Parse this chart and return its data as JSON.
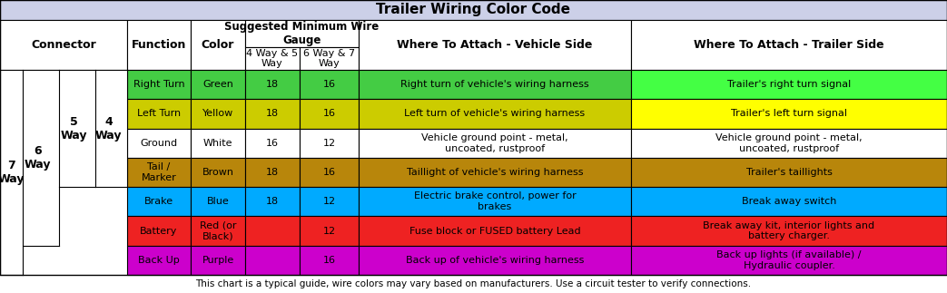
{
  "title": "Trailer Wiring Color Code",
  "footer": "This chart is a typical guide, wire colors may vary based on manufacturers. Use a circuit tester to verify connections.",
  "title_bg": "#ccd0e8",
  "rows": [
    {
      "function": "Right Turn",
      "color_name": "Green",
      "gauge_4_5": "18",
      "gauge_6_7": "16",
      "vehicle_side": "Right turn of vehicle's wiring harness",
      "trailer_side": "Trailer's right turn signal",
      "fn_bg": "#44cc44",
      "col_bg": "#44cc44",
      "g45_bg": "#44cc44",
      "g67_bg": "#44cc44",
      "veh_bg": "#44cc44",
      "tr_bg": "#44ff44",
      "fn_tc": "#000000",
      "tr_tc": "#000000"
    },
    {
      "function": "Left Turn",
      "color_name": "Yellow",
      "gauge_4_5": "18",
      "gauge_6_7": "16",
      "vehicle_side": "Left turn of vehicle's wiring harness",
      "trailer_side": "Trailer's left turn signal",
      "fn_bg": "#cccc00",
      "col_bg": "#cccc00",
      "g45_bg": "#cccc00",
      "g67_bg": "#cccc00",
      "veh_bg": "#cccc00",
      "tr_bg": "#ffff00",
      "fn_tc": "#000000",
      "tr_tc": "#000000"
    },
    {
      "function": "Ground",
      "color_name": "White",
      "gauge_4_5": "16",
      "gauge_6_7": "12",
      "vehicle_side": "Vehicle ground point - metal,\nuncoated, rustproof",
      "trailer_side": "Vehicle ground point - metal,\nuncoated, rustproof",
      "fn_bg": "#ffffff",
      "col_bg": "#ffffff",
      "g45_bg": "#ffffff",
      "g67_bg": "#ffffff",
      "veh_bg": "#ffffff",
      "tr_bg": "#ffffff",
      "fn_tc": "#000000",
      "tr_tc": "#000000"
    },
    {
      "function": "Tail /\nMarker",
      "color_name": "Brown",
      "gauge_4_5": "18",
      "gauge_6_7": "16",
      "vehicle_side": "Taillight of vehicle's wiring harness",
      "trailer_side": "Trailer's taillights",
      "fn_bg": "#b8860b",
      "col_bg": "#b8860b",
      "g45_bg": "#b8860b",
      "g67_bg": "#b8860b",
      "veh_bg": "#b8860b",
      "tr_bg": "#b8860b",
      "fn_tc": "#000000",
      "tr_tc": "#000000"
    },
    {
      "function": "Brake",
      "color_name": "Blue",
      "gauge_4_5": "18",
      "gauge_6_7": "12",
      "vehicle_side": "Electric brake control, power for\nbrakes",
      "trailer_side": "Break away switch",
      "fn_bg": "#00aaff",
      "col_bg": "#00aaff",
      "g45_bg": "#00aaff",
      "g67_bg": "#00aaff",
      "veh_bg": "#00aaff",
      "tr_bg": "#00aaff",
      "fn_tc": "#000000",
      "tr_tc": "#000000"
    },
    {
      "function": "Battery",
      "color_name": "Red (or\nBlack)",
      "gauge_4_5": "",
      "gauge_6_7": "12",
      "vehicle_side": "Fuse block or FUSED battery Lead",
      "trailer_side": "Break away kit, interior lights and\nbattery charger.",
      "fn_bg": "#ee2222",
      "col_bg": "#ee2222",
      "g45_bg": "#ee2222",
      "g67_bg": "#ee2222",
      "veh_bg": "#ee2222",
      "tr_bg": "#ee2222",
      "fn_tc": "#000000",
      "tr_tc": "#000000"
    },
    {
      "function": "Back Up",
      "color_name": "Purple",
      "gauge_4_5": "",
      "gauge_6_7": "16",
      "vehicle_side": "Back up of vehicle's wiring harness",
      "trailer_side": "Back up lights (if available) /\nHydraulic coupler.",
      "fn_bg": "#cc00cc",
      "col_bg": "#cc00cc",
      "g45_bg": "#cc00cc",
      "g67_bg": "#cc00cc",
      "veh_bg": "#cc00cc",
      "tr_bg": "#cc00cc",
      "fn_tc": "#000000",
      "tr_tc": "#000000"
    }
  ],
  "way4_rows": 4,
  "way5_rows": 4,
  "way6_rows": 6,
  "way7_rows": 7
}
